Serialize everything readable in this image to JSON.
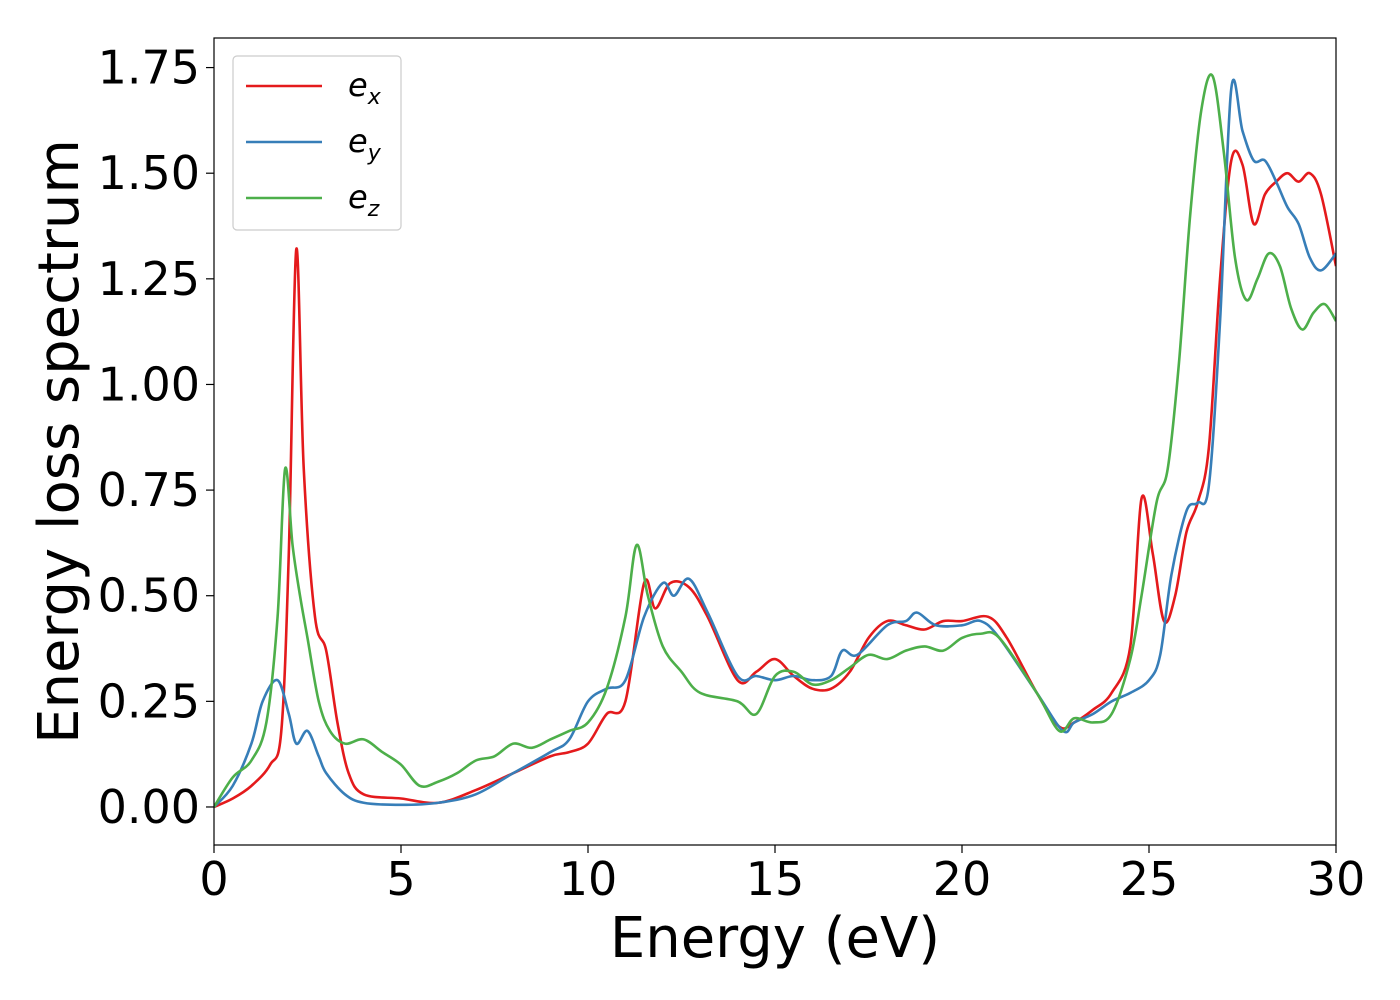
{
  "chart_data": {
    "type": "line",
    "title": "",
    "xlabel": "Energy (eV)",
    "ylabel": "Energy loss spectrum",
    "xlim": [
      0,
      30
    ],
    "ylim": [
      -0.09,
      1.82
    ],
    "xticks": [
      0,
      5,
      10,
      15,
      20,
      25,
      30
    ],
    "xtick_labels": [
      "0",
      "5",
      "10",
      "15",
      "20",
      "25",
      "30"
    ],
    "yticks": [
      0.0,
      0.25,
      0.5,
      0.75,
      1.0,
      1.25,
      1.5,
      1.75
    ],
    "ytick_labels": [
      "0.00",
      "0.25",
      "0.50",
      "0.75",
      "1.00",
      "1.25",
      "1.50",
      "1.75"
    ],
    "grid": false,
    "legend_position": "top-left",
    "series": [
      {
        "name": "e_x",
        "legend_base": "e",
        "legend_sub": "x",
        "color": "#e41a1c",
        "x": [
          0,
          0.5,
          1.0,
          1.5,
          1.8,
          2.0,
          2.2,
          2.4,
          2.7,
          3.0,
          3.3,
          3.6,
          4.0,
          5.0,
          6.0,
          7.0,
          8.0,
          9.0,
          9.5,
          10.0,
          10.5,
          11.0,
          11.5,
          11.8,
          12.2,
          12.7,
          13.2,
          14.0,
          14.5,
          15.0,
          15.5,
          16.0,
          16.5,
          17.0,
          17.5,
          18.0,
          18.5,
          19.0,
          19.5,
          20.0,
          20.7,
          21.2,
          22.0,
          22.6,
          23.0,
          23.5,
          24.0,
          24.5,
          24.8,
          25.1,
          25.4,
          25.7,
          26.0,
          26.3,
          26.6,
          26.9,
          27.2,
          27.5,
          27.8,
          28.1,
          28.4,
          28.7,
          29.0,
          29.3,
          29.6,
          30.0
        ],
        "y": [
          0.0,
          0.02,
          0.05,
          0.1,
          0.18,
          0.6,
          1.32,
          0.8,
          0.45,
          0.37,
          0.2,
          0.08,
          0.03,
          0.02,
          0.01,
          0.04,
          0.08,
          0.12,
          0.13,
          0.15,
          0.22,
          0.25,
          0.53,
          0.47,
          0.53,
          0.52,
          0.45,
          0.3,
          0.32,
          0.35,
          0.31,
          0.28,
          0.28,
          0.32,
          0.4,
          0.44,
          0.43,
          0.42,
          0.44,
          0.44,
          0.45,
          0.4,
          0.27,
          0.19,
          0.2,
          0.23,
          0.27,
          0.38,
          0.73,
          0.6,
          0.44,
          0.5,
          0.65,
          0.72,
          0.85,
          1.25,
          1.53,
          1.52,
          1.38,
          1.45,
          1.48,
          1.5,
          1.48,
          1.5,
          1.45,
          1.28
        ]
      },
      {
        "name": "e_y",
        "legend_base": "e",
        "legend_sub": "y",
        "color": "#377eb8",
        "x": [
          0,
          0.5,
          1.0,
          1.3,
          1.7,
          2.0,
          2.2,
          2.5,
          2.8,
          3.0,
          3.5,
          4.0,
          5.0,
          6.0,
          7.0,
          8.0,
          9.0,
          9.5,
          10.0,
          10.5,
          11.0,
          11.5,
          12.0,
          12.3,
          12.7,
          13.2,
          14.0,
          14.5,
          15.0,
          15.5,
          16.0,
          16.5,
          16.8,
          17.2,
          18.0,
          18.5,
          18.8,
          19.3,
          20.0,
          20.5,
          21.0,
          22.0,
          22.7,
          23.0,
          23.5,
          24.0,
          24.5,
          25.0,
          25.3,
          25.6,
          26.0,
          26.3,
          26.6,
          26.9,
          27.2,
          27.5,
          27.8,
          28.1,
          28.4,
          28.7,
          29.0,
          29.3,
          29.6,
          30.0
        ],
        "y": [
          0.0,
          0.05,
          0.15,
          0.25,
          0.3,
          0.22,
          0.15,
          0.18,
          0.12,
          0.08,
          0.03,
          0.01,
          0.005,
          0.01,
          0.03,
          0.08,
          0.13,
          0.16,
          0.25,
          0.28,
          0.3,
          0.45,
          0.53,
          0.5,
          0.54,
          0.46,
          0.31,
          0.31,
          0.3,
          0.31,
          0.3,
          0.31,
          0.37,
          0.36,
          0.43,
          0.44,
          0.46,
          0.43,
          0.43,
          0.44,
          0.4,
          0.27,
          0.18,
          0.2,
          0.22,
          0.25,
          0.27,
          0.3,
          0.36,
          0.55,
          0.7,
          0.72,
          0.76,
          1.15,
          1.7,
          1.6,
          1.53,
          1.53,
          1.48,
          1.42,
          1.38,
          1.3,
          1.27,
          1.31
        ]
      },
      {
        "name": "e_z",
        "legend_base": "e",
        "legend_sub": "z",
        "color": "#4daf4a",
        "x": [
          0,
          0.5,
          1.0,
          1.4,
          1.7,
          1.9,
          2.1,
          2.3,
          2.5,
          2.8,
          3.1,
          3.5,
          4.0,
          4.5,
          5.0,
          5.5,
          6.0,
          6.5,
          7.0,
          7.5,
          8.0,
          8.5,
          9.0,
          9.5,
          10.0,
          10.5,
          11.0,
          11.3,
          11.6,
          12.0,
          12.5,
          13.0,
          14.0,
          14.5,
          15.0,
          15.5,
          16.0,
          16.5,
          17.0,
          17.5,
          18.0,
          18.5,
          19.0,
          19.5,
          20.0,
          20.5,
          21.0,
          22.0,
          22.6,
          23.0,
          23.5,
          24.0,
          24.5,
          24.8,
          25.2,
          25.5,
          25.8,
          26.1,
          26.4,
          26.7,
          27.0,
          27.3,
          27.6,
          27.9,
          28.2,
          28.5,
          28.8,
          29.1,
          29.4,
          29.7,
          30.0
        ],
        "y": [
          0.0,
          0.07,
          0.11,
          0.2,
          0.45,
          0.8,
          0.62,
          0.5,
          0.4,
          0.25,
          0.18,
          0.15,
          0.16,
          0.13,
          0.1,
          0.05,
          0.06,
          0.08,
          0.11,
          0.12,
          0.15,
          0.14,
          0.16,
          0.18,
          0.2,
          0.28,
          0.45,
          0.62,
          0.5,
          0.38,
          0.32,
          0.27,
          0.25,
          0.22,
          0.31,
          0.32,
          0.29,
          0.3,
          0.33,
          0.36,
          0.35,
          0.37,
          0.38,
          0.37,
          0.4,
          0.41,
          0.4,
          0.27,
          0.18,
          0.21,
          0.2,
          0.22,
          0.35,
          0.5,
          0.72,
          0.8,
          1.05,
          1.4,
          1.65,
          1.73,
          1.55,
          1.3,
          1.2,
          1.25,
          1.31,
          1.28,
          1.18,
          1.13,
          1.17,
          1.19,
          1.15
        ]
      }
    ]
  }
}
